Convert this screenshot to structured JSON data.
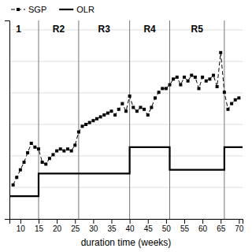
{
  "chart_data": {
    "type": "line",
    "xlabel": "duration time (weeks)",
    "xlim": [
      7,
      71
    ],
    "ylim": [
      0,
      1.05
    ],
    "xticks": [
      10,
      15,
      20,
      25,
      30,
      35,
      40,
      45,
      50,
      55,
      60,
      65,
      70
    ],
    "yticks": [
      0,
      0.16666666666666666,
      0.3333333333333333,
      0.5,
      0.6666666666666666,
      0.8333333333333334,
      1
    ],
    "tick_labels": "x",
    "grid": true,
    "legend": "upper left",
    "region_lines": [
      15,
      26,
      40,
      51,
      66
    ],
    "annotations": [
      {
        "text": "1",
        "x": 9.5
      },
      {
        "text": "R2",
        "x": 20.5
      },
      {
        "text": "R3",
        "x": 33.0
      },
      {
        "text": "R4",
        "x": 45.5
      },
      {
        "text": "R5",
        "x": 58.5
      }
    ],
    "series": [
      {
        "name": "SGP",
        "color": "#000000",
        "line_style": "dashed",
        "marker": "square",
        "x": [
          8,
          9,
          10,
          11,
          12,
          13,
          14,
          15,
          16,
          17,
          18,
          19,
          20,
          21,
          22,
          23,
          24,
          25,
          26,
          27,
          28,
          29,
          30,
          31,
          32,
          33,
          34,
          35,
          36,
          37,
          38,
          39,
          40,
          41,
          42,
          43,
          44,
          45,
          46,
          47,
          48,
          49,
          50,
          51,
          52,
          53,
          54,
          55,
          56,
          57,
          58,
          59,
          60,
          61,
          62,
          63,
          64,
          65,
          66,
          67,
          68,
          69,
          70
        ],
        "values": [
          0.18,
          0.22,
          0.26,
          0.3,
          0.35,
          0.4,
          0.38,
          0.37,
          0.3,
          0.29,
          0.32,
          0.34,
          0.36,
          0.37,
          0.36,
          0.37,
          0.36,
          0.39,
          0.46,
          0.49,
          0.5,
          0.51,
          0.52,
          0.53,
          0.54,
          0.55,
          0.56,
          0.57,
          0.55,
          0.58,
          0.61,
          0.57,
          0.65,
          0.59,
          0.57,
          0.59,
          0.58,
          0.55,
          0.59,
          0.64,
          0.67,
          0.69,
          0.69,
          0.71,
          0.74,
          0.75,
          0.71,
          0.75,
          0.73,
          0.76,
          0.75,
          0.69,
          0.75,
          0.73,
          0.74,
          0.76,
          0.7,
          0.88,
          0.67,
          0.58,
          0.61,
          0.63,
          0.64
        ]
      },
      {
        "name": "OLR",
        "color": "#000000",
        "line_style": "solid",
        "x": [
          7,
          15,
          15,
          26,
          26,
          40,
          40,
          51,
          51,
          66,
          66,
          71
        ],
        "values": [
          0.12,
          0.12,
          0.24,
          0.24,
          0.24,
          0.24,
          0.38,
          0.38,
          0.26,
          0.26,
          0.38,
          0.38
        ]
      }
    ]
  }
}
